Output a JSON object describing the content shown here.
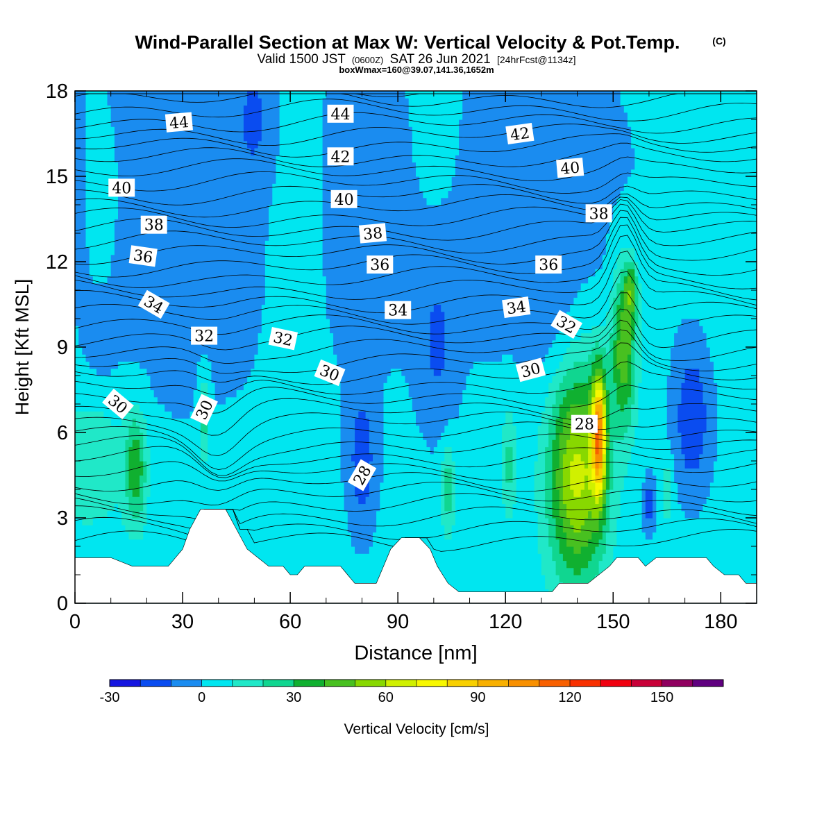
{
  "chart_data": {
    "type": "heatmap",
    "title": "Wind-Parallel Section at Max W: Vertical Velocity & Pot.Temp.",
    "title_mark": "(C)",
    "subtitle_parts": [
      "Valid 1500 JST",
      "(0600Z)",
      "SAT 26 Jun 2021",
      "[24hrFcst@1134z]"
    ],
    "subtitle2": "boxWmax=160@39.07,141.36,1652m",
    "xlabel": "Distance [nm]",
    "ylabel": "Height [Kft MSL]",
    "xlim": [
      0,
      190
    ],
    "ylim": [
      0,
      18
    ],
    "xticks": [
      0,
      30,
      60,
      90,
      120,
      150,
      180
    ],
    "yticks": [
      0,
      3,
      6,
      9,
      12,
      15,
      18
    ],
    "colorbar": {
      "label": "Vertical Velocity [cm/s]",
      "bounds": [
        -30,
        170
      ],
      "step": 10,
      "tick_values": [
        -30,
        0,
        30,
        60,
        90,
        120,
        150
      ],
      "colors": [
        "#1515e0",
        "#0a4cf0",
        "#1a8cf0",
        "#00e6f0",
        "#20e8c8",
        "#10d690",
        "#10b030",
        "#48c020",
        "#88d800",
        "#d0f000",
        "#f8f800",
        "#f8d000",
        "#f8b000",
        "#f89000",
        "#f86000",
        "#f83000",
        "#f00010",
        "#c80038",
        "#900060",
        "#600080"
      ]
    },
    "theta_contour_labels": [
      "44",
      "44",
      "42",
      "42",
      "40",
      "40",
      "40",
      "38",
      "38",
      "38",
      "36",
      "36",
      "36",
      "34",
      "34",
      "34",
      "32",
      "32",
      "32",
      "30",
      "30",
      "30",
      "30",
      "28",
      "28"
    ],
    "terrain_kft": [
      [
        0,
        1.6
      ],
      [
        10,
        1.6
      ],
      [
        16,
        1.3
      ],
      [
        26,
        1.3
      ],
      [
        28,
        1.6
      ],
      [
        30,
        1.9
      ],
      [
        32,
        2.6
      ],
      [
        35,
        3.3
      ],
      [
        42,
        3.3
      ],
      [
        45,
        2.6
      ],
      [
        48,
        1.9
      ],
      [
        51,
        1.6
      ],
      [
        54,
        1.3
      ],
      [
        58,
        1.3
      ],
      [
        60,
        1.0
      ],
      [
        62,
        1.0
      ],
      [
        64,
        1.3
      ],
      [
        74,
        1.3
      ],
      [
        76,
        1.0
      ],
      [
        78,
        0.7
      ],
      [
        84,
        0.7
      ],
      [
        86,
        1.3
      ],
      [
        88,
        1.9
      ],
      [
        91,
        2.3
      ],
      [
        96,
        2.3
      ],
      [
        99,
        1.9
      ],
      [
        101,
        1.3
      ],
      [
        104,
        0.7
      ],
      [
        107,
        0.4
      ],
      [
        133,
        0.4
      ],
      [
        135,
        0.7
      ],
      [
        143,
        0.7
      ],
      [
        146,
        1.0
      ],
      [
        149,
        1.3
      ],
      [
        151,
        1.6
      ],
      [
        157,
        1.6
      ],
      [
        159,
        1.3
      ],
      [
        162,
        1.6
      ],
      [
        176,
        1.6
      ],
      [
        178,
        1.3
      ],
      [
        181,
        1.0
      ],
      [
        185,
        1.0
      ],
      [
        187,
        0.7
      ],
      [
        190,
        0.7
      ]
    ],
    "w_features": [
      {
        "x": 75,
        "y": 9,
        "sx": 150,
        "sy": 18,
        "v": 5
      },
      {
        "x": 20,
        "y": 13,
        "sx": 30,
        "sy": 8,
        "v": -7
      },
      {
        "x": 75,
        "y": 13,
        "sx": 45,
        "sy": 8,
        "v": -7
      },
      {
        "x": 130,
        "y": 14,
        "sx": 30,
        "sy": 6,
        "v": -7
      },
      {
        "x": 9,
        "y": 14,
        "sx": 7,
        "sy": 4,
        "v": 4
      },
      {
        "x": 61,
        "y": 13,
        "sx": 9,
        "sy": 6,
        "v": 6
      },
      {
        "x": 101,
        "y": 16,
        "sx": 8,
        "sy": 4,
        "v": 5
      },
      {
        "x": 183,
        "y": 15,
        "sx": 8,
        "sy": 5,
        "v": 5
      },
      {
        "x": 50,
        "y": 17,
        "sx": 5,
        "sy": 2,
        "v": -12
      },
      {
        "x": 101,
        "y": 9,
        "sx": 5,
        "sy": 3,
        "v": -12
      },
      {
        "x": 132,
        "y": 10.5,
        "sx": 7,
        "sy": 3,
        "v": -8
      },
      {
        "x": 7,
        "y": 9,
        "sx": 4,
        "sy": 1,
        "v": -8
      },
      {
        "x": 80,
        "y": 5,
        "sx": 4,
        "sy": 2.5,
        "v": -18
      },
      {
        "x": 172,
        "y": 6.5,
        "sx": 5,
        "sy": 2.5,
        "v": -22
      },
      {
        "x": 160,
        "y": 3.5,
        "sx": 1.5,
        "sy": 1,
        "v": -20
      },
      {
        "x": 4,
        "y": 5,
        "sx": 12,
        "sy": 2.5,
        "v": 16
      },
      {
        "x": 17,
        "y": 4.7,
        "sx": 3,
        "sy": 2,
        "v": 33
      },
      {
        "x": 36,
        "y": 6.5,
        "sx": 1.5,
        "sy": 1.5,
        "v": 25
      },
      {
        "x": 104,
        "y": 4,
        "sx": 2,
        "sy": 1.5,
        "v": 25
      },
      {
        "x": 121,
        "y": 5,
        "sx": 2,
        "sy": 2,
        "v": 20
      },
      {
        "x": 140,
        "y": 4.5,
        "sx": 8,
        "sy": 3.8,
        "v": 60
      },
      {
        "x": 146,
        "y": 6,
        "sx": 2,
        "sy": 2.2,
        "v": 85
      },
      {
        "x": 153,
        "y": 9,
        "sx": 3.5,
        "sy": 2.8,
        "v": 45
      },
      {
        "x": 155,
        "y": 11,
        "sx": 1.8,
        "sy": 1,
        "v": 30
      },
      {
        "x": 165,
        "y": 4,
        "sx": 1.5,
        "sy": 1,
        "v": 20
      }
    ]
  }
}
